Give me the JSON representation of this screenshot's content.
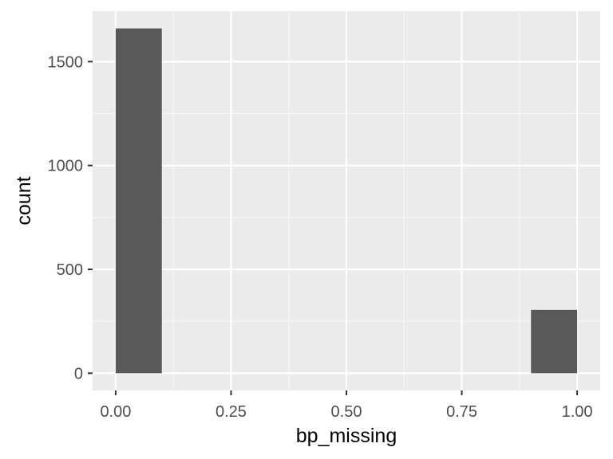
{
  "chart_data": {
    "type": "bar",
    "subtype": "histogram",
    "title": "",
    "xlabel": "bp_missing",
    "ylabel": "count",
    "bins": [
      {
        "x0": 0.0,
        "x1": 0.1,
        "count": 1660
      },
      {
        "x0": 0.1,
        "x1": 0.2,
        "count": 0
      },
      {
        "x0": 0.2,
        "x1": 0.3,
        "count": 0
      },
      {
        "x0": 0.3,
        "x1": 0.4,
        "count": 0
      },
      {
        "x0": 0.4,
        "x1": 0.5,
        "count": 0
      },
      {
        "x0": 0.5,
        "x1": 0.6,
        "count": 0
      },
      {
        "x0": 0.6,
        "x1": 0.7,
        "count": 0
      },
      {
        "x0": 0.7,
        "x1": 0.8,
        "count": 0
      },
      {
        "x0": 0.8,
        "x1": 0.9,
        "count": 0
      },
      {
        "x0": 0.9,
        "x1": 1.0,
        "count": 305
      }
    ],
    "xlim": [
      -0.05,
      1.05
    ],
    "ylim": [
      -83,
      1743
    ],
    "x_ticks": [
      {
        "value": 0.0,
        "label": "0.00"
      },
      {
        "value": 0.25,
        "label": "0.25"
      },
      {
        "value": 0.5,
        "label": "0.50"
      },
      {
        "value": 0.75,
        "label": "0.75"
      },
      {
        "value": 1.0,
        "label": "1.00"
      }
    ],
    "y_ticks": [
      {
        "value": 0,
        "label": "0"
      },
      {
        "value": 500,
        "label": "500"
      },
      {
        "value": 1000,
        "label": "1000"
      },
      {
        "value": 1500,
        "label": "1500"
      }
    ],
    "grid": true,
    "legend": "none",
    "colors": {
      "panel_background": "#ebebeb",
      "grid_major": "#ffffff",
      "grid_minor": "#f7f7f7",
      "bar_fill": "#595959",
      "tick_mark": "#333333"
    }
  }
}
